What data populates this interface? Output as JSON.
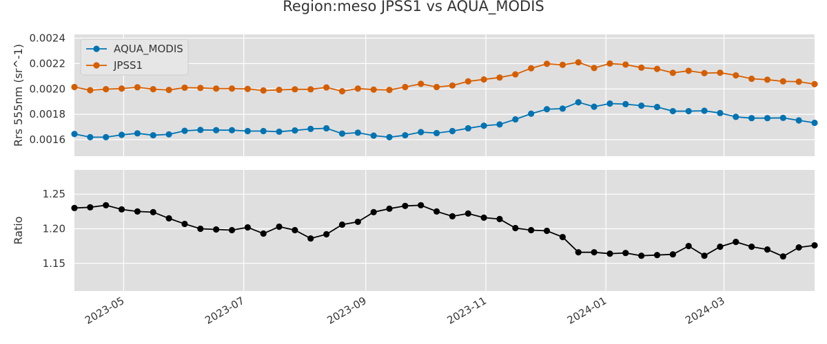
{
  "chart_data": {
    "type": "line",
    "title": "Region:meso JPSS1 vs AQUA_MODIS",
    "x": [
      "2023-04-06",
      "2023-04-14",
      "2023-04-22",
      "2023-04-30",
      "2023-05-08",
      "2023-05-16",
      "2023-05-24",
      "2023-06-01",
      "2023-06-09",
      "2023-06-17",
      "2023-06-25",
      "2023-07-03",
      "2023-07-11",
      "2023-07-19",
      "2023-07-27",
      "2023-08-04",
      "2023-08-12",
      "2023-08-20",
      "2023-08-28",
      "2023-09-05",
      "2023-09-13",
      "2023-09-21",
      "2023-09-29",
      "2023-10-07",
      "2023-10-15",
      "2023-10-23",
      "2023-10-31",
      "2023-11-08",
      "2023-11-16",
      "2023-11-24",
      "2023-12-02",
      "2023-12-10",
      "2023-12-18",
      "2023-12-26",
      "2024-01-03",
      "2024-01-11",
      "2024-01-19",
      "2024-01-27",
      "2024-02-04",
      "2024-02-12",
      "2024-02-20",
      "2024-02-28",
      "2024-03-07",
      "2024-03-15",
      "2024-03-23",
      "2024-03-31",
      "2024-04-08",
      "2024-04-16"
    ],
    "x_ticks": [
      "2023-05",
      "2023-07",
      "2023-09",
      "2023-11",
      "2024-01",
      "2024-03"
    ],
    "xlim": [
      "2023-04-06",
      "2024-04-16"
    ],
    "panels": [
      {
        "id": "rrs",
        "ylabel": "Rrs 555nm (sr^-1)",
        "ylim": [
          0.00147,
          0.00243
        ],
        "y_ticks": [
          "0.0016",
          "0.0018",
          "0.0020",
          "0.0022",
          "0.0024"
        ],
        "legend": "upper-left",
        "series": [
          {
            "name": "AQUA_MODIS",
            "color": "#0173b2",
            "values": [
              0.001645,
              0.00162,
              0.00162,
              0.001638,
              0.00165,
              0.001635,
              0.001642,
              0.00167,
              0.001677,
              0.001675,
              0.001675,
              0.001668,
              0.001668,
              0.001663,
              0.001673,
              0.001685,
              0.00169,
              0.001648,
              0.001655,
              0.001632,
              0.00162,
              0.001635,
              0.00166,
              0.001652,
              0.001668,
              0.00169,
              0.00171,
              0.00172,
              0.00176,
              0.001805,
              0.00184,
              0.001845,
              0.001895,
              0.00186,
              0.001885,
              0.00188,
              0.001868,
              0.001858,
              0.001825,
              0.001825,
              0.001828,
              0.00181,
              0.00178,
              0.00177,
              0.00177,
              0.001772,
              0.001752,
              0.001733
            ]
          },
          {
            "name": "JPSS1",
            "color": "#d55e00",
            "values": [
              0.002015,
              0.00199,
              0.001998,
              0.002003,
              0.002013,
              0.001998,
              0.001992,
              0.00201,
              0.002008,
              0.002003,
              0.002003,
              0.002,
              0.001988,
              0.001993,
              0.001997,
              0.001997,
              0.002012,
              0.001982,
              0.002003,
              0.001995,
              0.001992,
              0.002015,
              0.00204,
              0.002015,
              0.002027,
              0.00206,
              0.002075,
              0.00209,
              0.002115,
              0.002163,
              0.002198,
              0.00219,
              0.00221,
              0.002165,
              0.0022,
              0.002192,
              0.002168,
              0.002158,
              0.002127,
              0.002143,
              0.002125,
              0.002128,
              0.002107,
              0.00208,
              0.002073,
              0.00206,
              0.002057,
              0.002038
            ]
          }
        ]
      },
      {
        "id": "ratio",
        "ylabel": "Ratio",
        "ylim": [
          1.11,
          1.285
        ],
        "y_ticks": [
          "1.15",
          "1.20",
          "1.25"
        ],
        "series": [
          {
            "name": "",
            "color": "#000000",
            "values": [
              1.23,
              1.231,
              1.234,
              1.228,
              1.225,
              1.224,
              1.215,
              1.207,
              1.2,
              1.199,
              1.198,
              1.202,
              1.193,
              1.203,
              1.198,
              1.186,
              1.192,
              1.206,
              1.21,
              1.224,
              1.229,
              1.233,
              1.234,
              1.225,
              1.218,
              1.222,
              1.216,
              1.214,
              1.201,
              1.198,
              1.197,
              1.188,
              1.166,
              1.166,
              1.164,
              1.165,
              1.161,
              1.162,
              1.163,
              1.175,
              1.161,
              1.174,
              1.181,
              1.174,
              1.17,
              1.16,
              1.173,
              1.176
            ]
          }
        ]
      }
    ]
  }
}
